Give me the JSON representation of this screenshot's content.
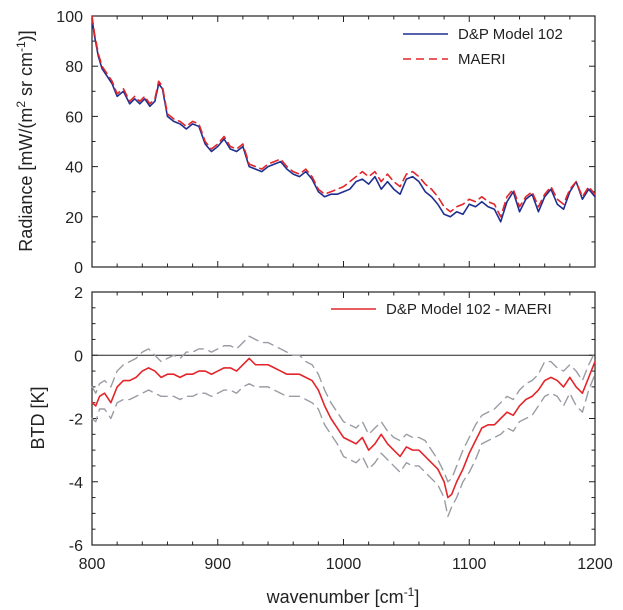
{
  "chart_data": [
    {
      "type": "line",
      "ylabel": "Radiance [mW/(m",
      "ylabel_sup1": "2",
      "ylabel_mid": " sr cm",
      "ylabel_sup2": "-1",
      "ylabel_end": ")]",
      "xlim": [
        800,
        1200
      ],
      "ylim": [
        0,
        100
      ],
      "yticks": [
        "0",
        "20",
        "40",
        "60",
        "80",
        "100"
      ],
      "legend_position": "top-right",
      "grid": false,
      "series": [
        {
          "name": "D&P Model 102",
          "color": "#1f2f8f",
          "dash": "solid",
          "x": [
            800,
            802,
            805,
            808,
            812,
            816,
            820,
            825,
            830,
            834,
            838,
            842,
            846,
            850,
            853,
            856,
            860,
            865,
            870,
            875,
            880,
            885,
            890,
            895,
            900,
            905,
            910,
            915,
            920,
            925,
            930,
            935,
            940,
            945,
            950,
            955,
            960,
            965,
            970,
            975,
            980,
            985,
            990,
            995,
            1000,
            1005,
            1010,
            1015,
            1020,
            1025,
            1030,
            1035,
            1040,
            1045,
            1050,
            1055,
            1060,
            1065,
            1070,
            1075,
            1080,
            1085,
            1090,
            1095,
            1100,
            1105,
            1110,
            1115,
            1120,
            1125,
            1130,
            1135,
            1140,
            1145,
            1150,
            1155,
            1160,
            1165,
            1170,
            1175,
            1180,
            1185,
            1190,
            1195,
            1200
          ],
          "y": [
            99,
            92,
            84,
            79,
            76,
            73,
            68,
            70,
            65,
            67,
            65,
            67,
            64,
            66,
            73,
            71,
            60,
            58,
            57,
            55,
            57,
            56,
            49,
            46,
            48,
            51,
            47,
            46,
            48,
            40,
            39,
            38,
            40,
            41,
            42,
            39,
            37,
            36,
            38,
            35,
            30,
            28,
            29,
            29,
            30,
            31,
            34,
            35,
            33,
            36,
            31,
            34,
            31,
            29,
            35,
            36,
            34,
            30,
            28,
            25,
            21,
            20,
            22,
            21,
            25,
            24,
            26,
            24,
            23,
            18,
            26,
            30,
            22,
            27,
            29,
            22,
            28,
            31,
            25,
            23,
            30,
            34,
            27,
            31,
            28
          ]
        },
        {
          "name": "MAERI",
          "color": "#e2262b",
          "dash": "8,5",
          "x": [
            800,
            802,
            805,
            808,
            812,
            816,
            820,
            825,
            830,
            834,
            838,
            842,
            846,
            850,
            853,
            856,
            860,
            865,
            870,
            875,
            880,
            885,
            890,
            895,
            900,
            905,
            910,
            915,
            920,
            925,
            930,
            935,
            940,
            945,
            950,
            955,
            960,
            965,
            970,
            975,
            980,
            985,
            990,
            995,
            1000,
            1005,
            1010,
            1015,
            1020,
            1025,
            1030,
            1035,
            1040,
            1045,
            1050,
            1055,
            1060,
            1065,
            1070,
            1075,
            1080,
            1085,
            1090,
            1095,
            1100,
            1105,
            1110,
            1115,
            1120,
            1125,
            1130,
            1135,
            1140,
            1145,
            1150,
            1155,
            1160,
            1165,
            1170,
            1175,
            1180,
            1185,
            1190,
            1195,
            1200
          ],
          "y": [
            100,
            93,
            85,
            80,
            77,
            74,
            69,
            71,
            66,
            68,
            66,
            68,
            65,
            67,
            74,
            72,
            61,
            59,
            58,
            56,
            58,
            57,
            50,
            47,
            49,
            52,
            48,
            47,
            49,
            41,
            40,
            39,
            41,
            42,
            43,
            40,
            38,
            37,
            39,
            36,
            31,
            29,
            30,
            31,
            32,
            34,
            36,
            38,
            36,
            38,
            34,
            37,
            34,
            32,
            37,
            38,
            36,
            33,
            31,
            28,
            24,
            22,
            24,
            25,
            27,
            26,
            28,
            26,
            25,
            20,
            28,
            31,
            24,
            28,
            30,
            24,
            29,
            32,
            27,
            25,
            31,
            34,
            28,
            32,
            29
          ]
        }
      ]
    },
    {
      "type": "line",
      "ylabel": "BTD [K]",
      "xlabel": "wavenumber [cm",
      "xlabel_sup": "-1",
      "xlabel_end": "]",
      "xlim": [
        800,
        1200
      ],
      "ylim": [
        -6,
        2
      ],
      "xticks": [
        "800",
        "900",
        "1000",
        "1100",
        "1200"
      ],
      "yticks": [
        "-6",
        "-4",
        "-2",
        "0",
        "2"
      ],
      "zero_line": 0,
      "legend_position": "top-right",
      "grid": false,
      "series": [
        {
          "name": "D&P Model 102 - MAERI",
          "color": "#e2262b",
          "dash": "solid",
          "x": [
            800,
            803,
            806,
            810,
            815,
            820,
            825,
            830,
            835,
            840,
            845,
            850,
            855,
            860,
            865,
            870,
            875,
            880,
            885,
            890,
            895,
            900,
            905,
            910,
            915,
            920,
            925,
            930,
            935,
            940,
            945,
            950,
            955,
            960,
            965,
            970,
            975,
            980,
            985,
            990,
            995,
            1000,
            1005,
            1010,
            1015,
            1020,
            1025,
            1030,
            1035,
            1040,
            1045,
            1050,
            1055,
            1060,
            1065,
            1070,
            1075,
            1080,
            1083,
            1086,
            1090,
            1095,
            1100,
            1105,
            1110,
            1115,
            1120,
            1125,
            1130,
            1135,
            1140,
            1145,
            1150,
            1155,
            1160,
            1165,
            1170,
            1175,
            1180,
            1185,
            1190,
            1195,
            1200
          ],
          "y": [
            -1.5,
            -1.6,
            -1.3,
            -1.2,
            -1.5,
            -1.0,
            -0.8,
            -0.8,
            -0.7,
            -0.5,
            -0.4,
            -0.5,
            -0.7,
            -0.6,
            -0.6,
            -0.7,
            -0.6,
            -0.6,
            -0.5,
            -0.5,
            -0.6,
            -0.5,
            -0.4,
            -0.4,
            -0.5,
            -0.3,
            -0.1,
            -0.3,
            -0.3,
            -0.3,
            -0.4,
            -0.5,
            -0.6,
            -0.6,
            -0.6,
            -0.7,
            -0.8,
            -1.1,
            -1.6,
            -2.0,
            -2.3,
            -2.6,
            -2.7,
            -2.8,
            -2.6,
            -3.0,
            -2.8,
            -2.5,
            -2.8,
            -3.0,
            -3.2,
            -2.9,
            -3.0,
            -3.0,
            -3.2,
            -3.4,
            -3.6,
            -4.0,
            -4.5,
            -4.4,
            -4.0,
            -3.6,
            -3.1,
            -2.7,
            -2.3,
            -2.2,
            -2.2,
            -2.0,
            -1.8,
            -1.9,
            -1.6,
            -1.4,
            -1.3,
            -1.1,
            -0.8,
            -0.7,
            -0.8,
            -1.0,
            -0.7,
            -1.0,
            -1.2,
            -0.7,
            -0.2
          ]
        },
        {
          "name": "",
          "color": "#9a9ca4",
          "dash": "10,6",
          "x": [
            800,
            803,
            806,
            810,
            815,
            820,
            825,
            830,
            835,
            840,
            845,
            850,
            855,
            860,
            865,
            870,
            875,
            880,
            885,
            890,
            895,
            900,
            905,
            910,
            915,
            920,
            925,
            930,
            935,
            940,
            945,
            950,
            955,
            960,
            965,
            970,
            975,
            980,
            985,
            990,
            995,
            1000,
            1005,
            1010,
            1015,
            1020,
            1025,
            1030,
            1035,
            1040,
            1045,
            1050,
            1055,
            1060,
            1065,
            1070,
            1075,
            1080,
            1083,
            1086,
            1090,
            1095,
            1100,
            1105,
            1110,
            1115,
            1120,
            1125,
            1130,
            1135,
            1140,
            1145,
            1150,
            1155,
            1160,
            1165,
            1170,
            1175,
            1180,
            1185,
            1190,
            1195,
            1200
          ],
          "y": [
            -1.0,
            -1.2,
            -0.9,
            -0.8,
            -1.0,
            -0.5,
            -0.3,
            -0.2,
            -0.1,
            0.1,
            0.2,
            0.0,
            -0.2,
            -0.1,
            0.0,
            -0.1,
            0.1,
            0.1,
            0.2,
            0.2,
            0.1,
            0.2,
            0.3,
            0.3,
            0.2,
            0.4,
            0.6,
            0.5,
            0.4,
            0.4,
            0.3,
            0.2,
            0.1,
            0.0,
            0.0,
            -0.2,
            -0.3,
            -0.6,
            -1.1,
            -1.5,
            -1.8,
            -2.1,
            -2.2,
            -2.3,
            -2.1,
            -2.5,
            -2.3,
            -2.1,
            -2.4,
            -2.6,
            -2.7,
            -2.5,
            -2.6,
            -2.6,
            -2.7,
            -3.0,
            -3.3,
            -3.7,
            -4.0,
            -3.9,
            -3.5,
            -3.0,
            -2.6,
            -2.2,
            -1.9,
            -1.8,
            -1.7,
            -1.5,
            -1.3,
            -1.4,
            -1.1,
            -0.9,
            -0.8,
            -0.6,
            -0.2,
            -0.2,
            -0.4,
            -0.5,
            -0.3,
            -0.5,
            -0.8,
            -0.3,
            0.1
          ]
        },
        {
          "name": "",
          "color": "#9a9ca4",
          "dash": "10,6",
          "x": [
            800,
            803,
            806,
            810,
            815,
            820,
            825,
            830,
            835,
            840,
            845,
            850,
            855,
            860,
            865,
            870,
            875,
            880,
            885,
            890,
            895,
            900,
            905,
            910,
            915,
            920,
            925,
            930,
            935,
            940,
            945,
            950,
            955,
            960,
            965,
            970,
            975,
            980,
            985,
            990,
            995,
            1000,
            1005,
            1010,
            1015,
            1020,
            1025,
            1030,
            1035,
            1040,
            1045,
            1050,
            1055,
            1060,
            1065,
            1070,
            1075,
            1080,
            1083,
            1086,
            1090,
            1095,
            1100,
            1105,
            1110,
            1115,
            1120,
            1125,
            1130,
            1135,
            1140,
            1145,
            1150,
            1155,
            1160,
            1165,
            1170,
            1175,
            1180,
            1185,
            1190,
            1195,
            1200
          ],
          "y": [
            -2.0,
            -2.1,
            -1.7,
            -1.7,
            -2.0,
            -1.5,
            -1.4,
            -1.4,
            -1.3,
            -1.2,
            -1.1,
            -1.2,
            -1.3,
            -1.3,
            -1.3,
            -1.4,
            -1.3,
            -1.3,
            -1.2,
            -1.2,
            -1.3,
            -1.2,
            -1.1,
            -1.1,
            -1.2,
            -1.0,
            -0.9,
            -1.0,
            -1.0,
            -1.0,
            -1.1,
            -1.2,
            -1.3,
            -1.3,
            -1.3,
            -1.4,
            -1.5,
            -1.7,
            -2.2,
            -2.5,
            -2.8,
            -3.2,
            -3.3,
            -3.4,
            -3.2,
            -3.6,
            -3.4,
            -3.1,
            -3.3,
            -3.5,
            -3.7,
            -3.4,
            -3.5,
            -3.5,
            -3.7,
            -3.9,
            -4.1,
            -4.5,
            -5.1,
            -4.8,
            -4.5,
            -4.0,
            -3.7,
            -3.3,
            -2.8,
            -2.7,
            -2.6,
            -2.5,
            -2.3,
            -2.4,
            -2.1,
            -2.0,
            -1.9,
            -1.6,
            -1.3,
            -1.2,
            -1.3,
            -1.6,
            -1.2,
            -1.6,
            -1.8,
            -1.1,
            -0.6
          ]
        }
      ]
    }
  ]
}
